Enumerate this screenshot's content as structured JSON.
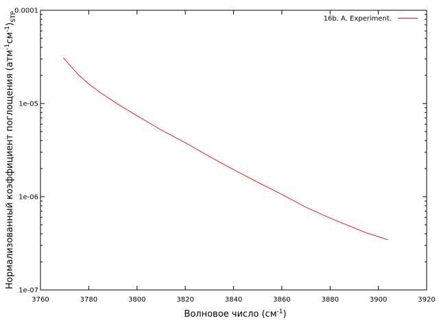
{
  "chart_data": {
    "type": "line",
    "xlabel": "Волновое число (см",
    "xlabel_sup": "-1",
    "xlabel_tail": ")",
    "ylabel_main": "Нормализованный коэффициент поглощения (атм",
    "ylabel_sup1": "-1",
    "ylabel_mid": "см",
    "ylabel_sup2": "-1",
    "ylabel_close": ")",
    "ylabel_sub": "STP",
    "xlim": [
      3760,
      3920
    ],
    "ylim": [
      1e-07,
      0.0001
    ],
    "yscale": "log",
    "x_ticks": [
      3760,
      3780,
      3800,
      3820,
      3840,
      3860,
      3880,
      3900,
      3920
    ],
    "x_tick_labels": [
      "3760",
      "3780",
      "3800",
      "3820",
      "3840",
      "3860",
      "3880",
      "3900",
      "3920"
    ],
    "y_ticks": [
      1e-07,
      1e-06,
      1e-05,
      0.0001
    ],
    "y_tick_labels": [
      "1e-07",
      "1e-06",
      "1e-05",
      "0.0001"
    ],
    "grid": false,
    "legend_position": "top-right",
    "series": [
      {
        "name": "16b. A. Experiment.",
        "color": "#e41a1c",
        "x": [
          3769.5,
          3772,
          3776,
          3780,
          3785,
          3793,
          3800,
          3810,
          3820,
          3830,
          3840,
          3850,
          3860,
          3870,
          3880,
          3888,
          3895,
          3904
        ],
        "y": [
          3.1e-05,
          2.6e-05,
          2e-05,
          1.62e-05,
          1.3e-05,
          9.5e-06,
          7.4e-06,
          5.2e-06,
          3.8e-06,
          2.7e-06,
          1.95e-06,
          1.43e-06,
          1.06e-06,
          7.7e-07,
          5.9e-07,
          4.85e-07,
          4.1e-07,
          3.45e-07
        ]
      }
    ]
  }
}
